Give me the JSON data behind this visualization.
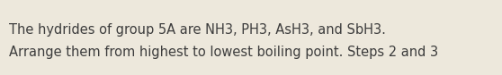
{
  "line1": "The hydrides of group 5A are NH3, PH3, AsH3, and SbH3.",
  "line2": "Arrange them from highest to lowest boiling point. Steps 2 and 3",
  "background_color": "#ede8dc",
  "text_color": "#3d3d3d",
  "font_size": 10.5,
  "fig_width": 5.58,
  "fig_height": 0.84,
  "dpi": 100
}
